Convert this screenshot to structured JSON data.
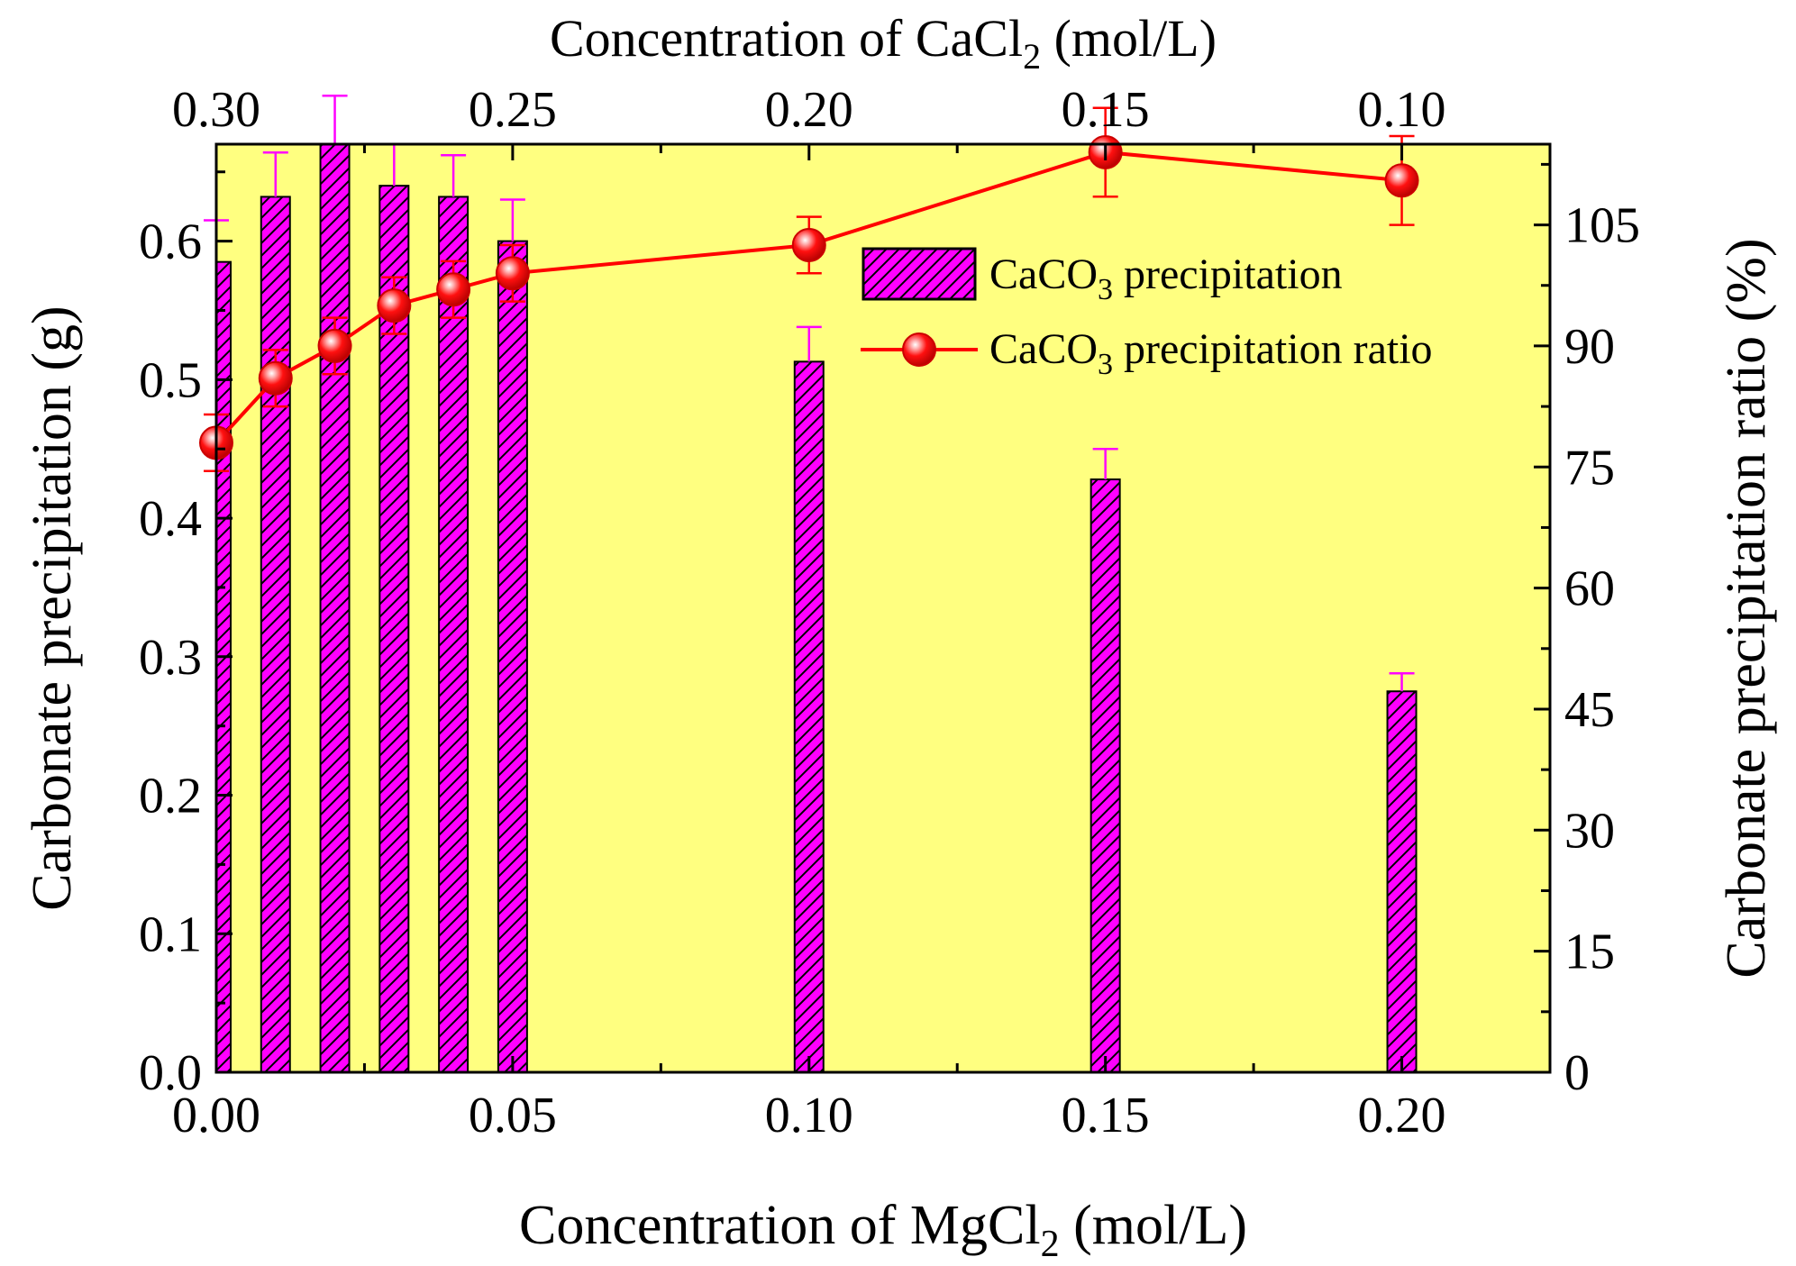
{
  "chart_data": {
    "type": "bar+line",
    "title": "",
    "bottom_axis": {
      "label_main": "Concentration of MgCl",
      "label_sub": "2",
      "label_tail": " (mol/L)",
      "range": [
        0.0,
        0.225
      ],
      "ticks": [
        0.0,
        0.05,
        0.1,
        0.15,
        0.2
      ],
      "tick_labels": [
        "0.00",
        "0.05",
        "0.10",
        "0.15",
        "0.20"
      ]
    },
    "top_axis": {
      "label_main": "Concentration of CaCl",
      "label_sub": "2",
      "label_tail": " (mol/L)",
      "ticks_at_mgcl2": [
        0.0,
        0.05,
        0.1,
        0.15,
        0.2
      ],
      "tick_labels": [
        "0.30",
        "0.25",
        "0.20",
        "0.15",
        "0.10"
      ]
    },
    "left_axis": {
      "label": "Carbonate precipitation (g)",
      "range": [
        0.0,
        0.67
      ],
      "ticks": [
        0.0,
        0.1,
        0.2,
        0.3,
        0.4,
        0.5,
        0.6
      ],
      "tick_labels": [
        "0.0",
        "0.1",
        "0.2",
        "0.3",
        "0.4",
        "0.5",
        "0.6"
      ]
    },
    "right_axis": {
      "label": "Carbonate precipitation ratio (%)",
      "range": [
        0,
        115
      ],
      "ticks": [
        0,
        15,
        30,
        45,
        60,
        75,
        90,
        105
      ],
      "tick_labels": [
        "0",
        "15",
        "30",
        "45",
        "60",
        "75",
        "90",
        "105"
      ]
    },
    "x": [
      0.0,
      0.01,
      0.02,
      0.03,
      0.04,
      0.05,
      0.1,
      0.15,
      0.2
    ],
    "series": [
      {
        "name": "CaCO3 precipitation",
        "legend_main": "CaCO",
        "legend_sub": "3",
        "legend_tail": " precipitation",
        "kind": "bar",
        "axis": "left",
        "values": [
          0.585,
          0.632,
          0.67,
          0.64,
          0.632,
          0.6,
          0.513,
          0.428,
          0.275
        ],
        "errors": [
          0.03,
          0.032,
          0.035,
          0.03,
          0.03,
          0.03,
          0.025,
          0.022,
          0.013
        ],
        "fill": "#ff00ff",
        "error_color": "#ff00ff"
      },
      {
        "name": "CaCO3 precipitation ratio",
        "legend_main": "CaCO",
        "legend_sub": "3",
        "legend_tail": " precipitation ratio",
        "kind": "line",
        "axis": "right",
        "values": [
          78,
          86,
          90,
          95,
          97,
          99,
          102.5,
          114,
          110.5
        ],
        "errors": [
          3.5,
          3.5,
          3.5,
          3.5,
          3.5,
          3.5,
          3.5,
          5.5,
          5.5
        ],
        "color": "#ff0000"
      }
    ],
    "plot_background": "#ffff80",
    "grid": false,
    "legend_position": "upper-right"
  }
}
